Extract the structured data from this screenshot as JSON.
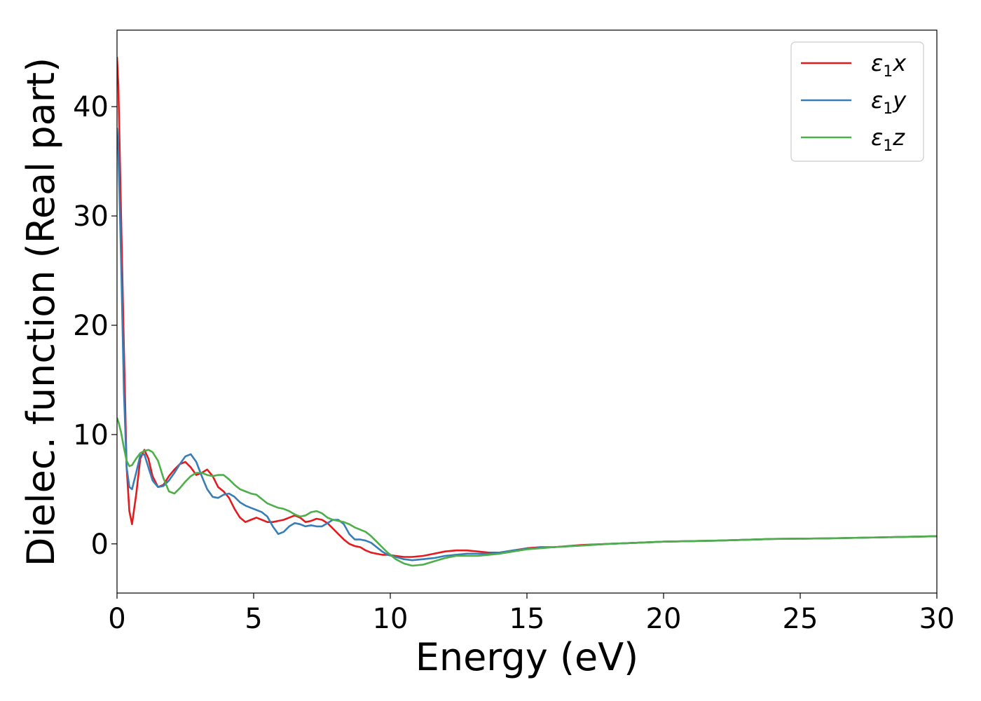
{
  "chart_data": {
    "type": "line",
    "title": "",
    "xlabel": "Energy (eV)",
    "ylabel": "Dielec. function (Real part)",
    "xlim": [
      0,
      30
    ],
    "ylim": [
      -4.5,
      47
    ],
    "xticks": [
      0,
      5,
      10,
      15,
      20,
      25,
      30
    ],
    "xtick_labels": [
      "0",
      "5",
      "10",
      "15",
      "20",
      "25",
      "30"
    ],
    "yticks": [
      0,
      10,
      20,
      30,
      40
    ],
    "ytick_labels": [
      "0",
      "10",
      "20",
      "30",
      "40"
    ],
    "grid": false,
    "legend_position": "top-right",
    "series": [
      {
        "name": "ε1x",
        "legend": {
          "symbol": "ε",
          "sub": "1",
          "axis": "x"
        },
        "color": "#e41a1c",
        "x": [
          0,
          0.05,
          0.15,
          0.25,
          0.35,
          0.45,
          0.55,
          0.7,
          0.85,
          1.0,
          1.15,
          1.3,
          1.5,
          1.7,
          1.9,
          2.1,
          2.3,
          2.5,
          2.7,
          2.9,
          3.1,
          3.3,
          3.5,
          3.7,
          3.9,
          4.1,
          4.3,
          4.5,
          4.7,
          4.9,
          5.1,
          5.3,
          5.5,
          5.7,
          5.9,
          6.1,
          6.3,
          6.5,
          6.7,
          6.9,
          7.1,
          7.3,
          7.5,
          7.7,
          7.9,
          8.1,
          8.3,
          8.5,
          8.7,
          8.9,
          9.1,
          9.3,
          9.5,
          9.7,
          9.9,
          10.2,
          10.5,
          10.8,
          11.2,
          11.6,
          12.0,
          12.4,
          12.8,
          13.2,
          13.6,
          14.0,
          14.5,
          15.0,
          15.5,
          16.0,
          17.0,
          18.0,
          19.0,
          20.0,
          22.0,
          24.0,
          26.0,
          28.0,
          30.0
        ],
        "y": [
          44.5,
          42,
          30,
          18,
          7,
          3,
          1.8,
          4.5,
          7.8,
          8.6,
          7.8,
          6.2,
          5.2,
          5.4,
          6.2,
          6.8,
          7.3,
          7.5,
          7.0,
          6.3,
          6.5,
          6.8,
          6.2,
          5.2,
          4.8,
          4.2,
          3.2,
          2.4,
          2.0,
          2.2,
          2.4,
          2.2,
          2.0,
          2.0,
          2.1,
          2.2,
          2.4,
          2.6,
          2.4,
          2.0,
          2.1,
          2.3,
          2.2,
          1.9,
          1.4,
          0.9,
          0.4,
          0.0,
          -0.2,
          -0.3,
          -0.6,
          -0.8,
          -0.9,
          -1.0,
          -1.0,
          -1.1,
          -1.2,
          -1.2,
          -1.1,
          -0.9,
          -0.7,
          -0.6,
          -0.6,
          -0.7,
          -0.8,
          -0.8,
          -0.6,
          -0.4,
          -0.3,
          -0.3,
          -0.1,
          0.0,
          0.1,
          0.2,
          0.3,
          0.45,
          0.5,
          0.6,
          0.7
        ]
      },
      {
        "name": "ε1y",
        "legend": {
          "symbol": "ε",
          "sub": "1",
          "axis": "y"
        },
        "color": "#377eb8",
        "x": [
          0,
          0.05,
          0.15,
          0.25,
          0.35,
          0.45,
          0.55,
          0.7,
          0.85,
          1.0,
          1.15,
          1.3,
          1.5,
          1.7,
          1.9,
          2.1,
          2.3,
          2.5,
          2.7,
          2.9,
          3.1,
          3.3,
          3.5,
          3.7,
          3.9,
          4.1,
          4.3,
          4.5,
          4.7,
          4.9,
          5.1,
          5.3,
          5.5,
          5.7,
          5.9,
          6.1,
          6.3,
          6.5,
          6.7,
          6.9,
          7.1,
          7.3,
          7.5,
          7.7,
          7.9,
          8.1,
          8.3,
          8.5,
          8.7,
          8.9,
          9.1,
          9.3,
          9.5,
          9.7,
          9.9,
          10.2,
          10.5,
          10.8,
          11.2,
          11.6,
          12.0,
          12.4,
          12.8,
          13.2,
          13.6,
          14.0,
          14.5,
          15.0,
          15.5,
          16.0,
          17.0,
          18.0,
          19.0,
          20.0,
          22.0,
          24.0,
          26.0,
          28.0,
          30.0
        ],
        "y": [
          38,
          36,
          26,
          14,
          7,
          5.2,
          5.0,
          6.5,
          8.1,
          8.2,
          7.0,
          5.8,
          5.2,
          5.3,
          5.8,
          6.5,
          7.3,
          8.0,
          8.2,
          7.5,
          6.2,
          5.0,
          4.3,
          4.2,
          4.5,
          4.6,
          4.3,
          3.8,
          3.5,
          3.3,
          3.1,
          2.9,
          2.5,
          1.6,
          0.9,
          1.1,
          1.6,
          1.9,
          1.8,
          1.6,
          1.7,
          1.6,
          1.6,
          1.9,
          2.2,
          2.2,
          1.8,
          0.9,
          0.4,
          0.4,
          0.3,
          0.1,
          -0.3,
          -0.7,
          -1.0,
          -1.2,
          -1.4,
          -1.5,
          -1.4,
          -1.3,
          -1.1,
          -1.0,
          -0.9,
          -0.9,
          -0.9,
          -0.8,
          -0.6,
          -0.45,
          -0.35,
          -0.3,
          -0.15,
          0.0,
          0.1,
          0.2,
          0.3,
          0.45,
          0.5,
          0.6,
          0.7
        ]
      },
      {
        "name": "ε1z",
        "legend": {
          "symbol": "ε",
          "sub": "1",
          "axis": "z"
        },
        "color": "#4daf4a",
        "x": [
          0,
          0.05,
          0.15,
          0.25,
          0.35,
          0.45,
          0.55,
          0.7,
          0.85,
          1.0,
          1.15,
          1.3,
          1.5,
          1.7,
          1.9,
          2.1,
          2.3,
          2.5,
          2.7,
          2.9,
          3.1,
          3.3,
          3.5,
          3.7,
          3.9,
          4.1,
          4.3,
          4.5,
          4.7,
          4.9,
          5.1,
          5.3,
          5.5,
          5.7,
          5.9,
          6.1,
          6.3,
          6.5,
          6.7,
          6.9,
          7.1,
          7.3,
          7.5,
          7.7,
          7.9,
          8.1,
          8.3,
          8.5,
          8.7,
          8.9,
          9.1,
          9.3,
          9.5,
          9.7,
          9.9,
          10.2,
          10.5,
          10.8,
          11.2,
          11.6,
          12.0,
          12.4,
          12.8,
          13.2,
          13.6,
          14.0,
          14.5,
          15.0,
          15.5,
          16.0,
          17.0,
          18.0,
          19.0,
          20.0,
          22.0,
          24.0,
          26.0,
          28.0,
          30.0
        ],
        "y": [
          11.5,
          11.2,
          10.2,
          8.8,
          7.6,
          7.1,
          7.2,
          7.8,
          8.3,
          8.5,
          8.6,
          8.4,
          7.6,
          6.0,
          4.8,
          4.6,
          5.1,
          5.7,
          6.2,
          6.5,
          6.5,
          6.3,
          6.2,
          6.3,
          6.3,
          5.9,
          5.4,
          5.0,
          4.8,
          4.6,
          4.5,
          4.1,
          3.7,
          3.5,
          3.3,
          3.2,
          3.0,
          2.7,
          2.5,
          2.6,
          2.9,
          3.0,
          2.8,
          2.4,
          2.2,
          2.1,
          2.0,
          1.8,
          1.5,
          1.3,
          1.1,
          0.7,
          0.2,
          -0.3,
          -0.8,
          -1.4,
          -1.8,
          -2.0,
          -1.9,
          -1.6,
          -1.3,
          -1.1,
          -1.1,
          -1.1,
          -1.0,
          -0.9,
          -0.7,
          -0.5,
          -0.4,
          -0.3,
          -0.15,
          0.0,
          0.1,
          0.2,
          0.3,
          0.45,
          0.5,
          0.6,
          0.7
        ]
      }
    ]
  }
}
